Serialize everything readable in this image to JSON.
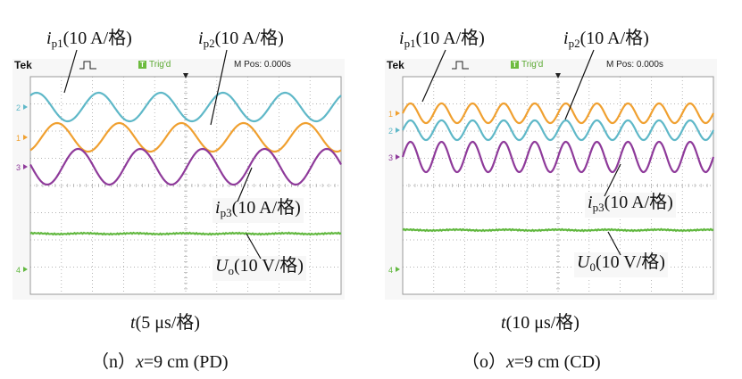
{
  "scope": {
    "brand": "Tek",
    "trigger_badge": "T",
    "trigger_status": "Trig'd",
    "m_pos_label": "M Pos: 0.000s"
  },
  "colors": {
    "ch1": "#f0a030",
    "ch2": "#5fb8c8",
    "ch3": "#8e3a9a",
    "ch4": "#62b840",
    "grid": "#9a9a9a",
    "screen_bg": "#ffffff",
    "border": "#9a9a9a"
  },
  "panels": [
    {
      "id": "n",
      "x_axis": {
        "var": "t",
        "units": "(5 μs/格)"
      },
      "caption": {
        "prefix": "（n）",
        "var": "x",
        "rest": "=9 cm (PD)"
      },
      "annotations": {
        "ip1": {
          "sym": "i",
          "sub": "p1",
          "units": "(10 A/格)"
        },
        "ip2": {
          "sym": "i",
          "sub": "p2",
          "units": "(10 A/格)"
        },
        "ip3": {
          "sym": "i",
          "sub": "p3",
          "units": "(10 A/格)"
        },
        "uo": {
          "sym": "U",
          "sub": "o",
          "units": "(10 V/格)"
        }
      },
      "channels": [
        {
          "label": "2",
          "cycles": 5.0,
          "phase": 0.15,
          "marker_level": 0.06,
          "markers": [
            "2"
          ]
        },
        {
          "label": "1",
          "cycles": 5.0,
          "phase": 0.82,
          "marker_level": 0.96,
          "markers": [
            "1"
          ]
        },
        {
          "label": "3",
          "cycles": 5.0,
          "phase": 0.48,
          "marker_level": 1.05,
          "markers": [
            "3"
          ]
        },
        {
          "label": "4",
          "markers": [
            "4"
          ]
        }
      ]
    },
    {
      "id": "o",
      "x_axis": {
        "var": "t",
        "units": "(10 μs/格)"
      },
      "caption": {
        "prefix": "（o）",
        "var": "x",
        "rest": "=9 cm (CD)"
      },
      "annotations": {
        "ip1": {
          "sym": "i",
          "sub": "p1",
          "units": "(10 A/格)"
        },
        "ip2": {
          "sym": "i",
          "sub": "p2",
          "units": "(10 A/格)"
        },
        "ip3": {
          "sym": "i",
          "sub": "p3",
          "units": "(10 A/格)"
        },
        "uo": {
          "sym": "U",
          "sub": "0",
          "units": "(10 V/格)"
        }
      },
      "channels": [
        {
          "label": "1",
          "cycles": 10.0,
          "phase": 0.0,
          "marker_level": 0.96,
          "markers": [
            "1"
          ]
        },
        {
          "label": "2",
          "cycles": 10.0,
          "phase": 0.0,
          "marker_level": 0.5,
          "markers": [
            "2"
          ]
        },
        {
          "label": "3",
          "cycles": 10.0,
          "phase": 0.0,
          "marker_level": 1.04,
          "markers": [
            "3"
          ]
        },
        {
          "label": "4",
          "markers": [
            "4"
          ]
        }
      ]
    }
  ]
}
